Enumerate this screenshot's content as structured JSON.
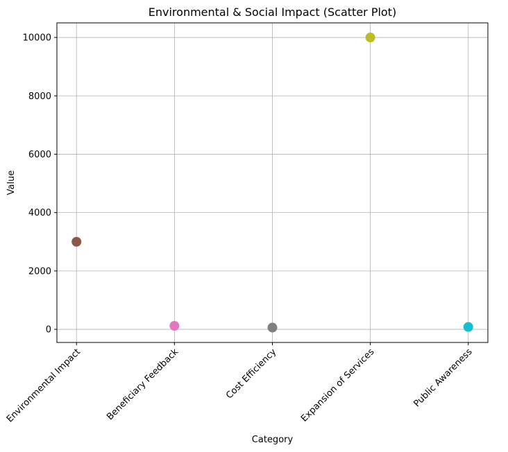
{
  "chart_data": {
    "type": "scatter",
    "title": "Environmental & Social Impact (Scatter Plot)",
    "xlabel": "Category",
    "ylabel": "Value",
    "categories": [
      "Environmental Impact",
      "Beneficiary Feedback",
      "Cost Efficiency",
      "Expansion of Services",
      "Public Awareness"
    ],
    "values": [
      3000,
      120,
      60,
      10000,
      80
    ],
    "colors": [
      "#8c564b",
      "#e377c2",
      "#7f7f7f",
      "#bcbd22",
      "#17becf"
    ],
    "ylim": [
      -450,
      10500
    ],
    "yticks": [
      0,
      2000,
      4000,
      6000,
      8000,
      10000
    ],
    "grid": true,
    "legend": "none"
  }
}
